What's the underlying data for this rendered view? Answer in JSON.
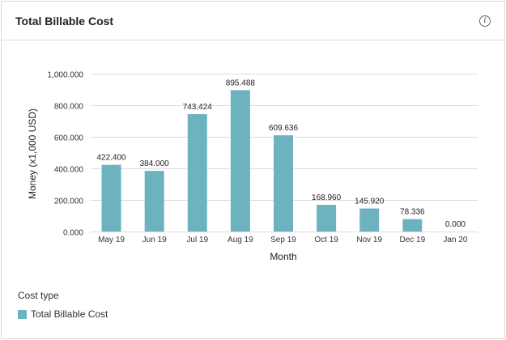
{
  "card": {
    "title": "Total Billable Cost",
    "info_icon": "info-circle-icon"
  },
  "legend": {
    "title": "Cost type",
    "items": [
      {
        "label": "Total Billable Cost",
        "color": "#6db3bf"
      }
    ]
  },
  "chart_data": {
    "type": "bar",
    "title": "Total Billable Cost",
    "xlabel": "Month",
    "ylabel": "Money (x1,000 USD)",
    "categories": [
      "May 19",
      "Jun 19",
      "Jul 19",
      "Aug 19",
      "Sep 19",
      "Oct 19",
      "Nov 19",
      "Dec 19",
      "Jan 20"
    ],
    "series": [
      {
        "name": "Total Billable Cost",
        "color": "#6db3bf",
        "values": [
          422.4,
          384.0,
          743.424,
          895.488,
          609.636,
          168.96,
          145.92,
          78.336,
          0.0
        ],
        "value_labels": [
          "422.400",
          "384.000",
          "743.424",
          "895.488",
          "609.636",
          "168.960",
          "145.920",
          "78.336",
          "0.000"
        ]
      }
    ],
    "ylim": [
      0,
      1000
    ],
    "yticks": [
      0,
      200,
      400,
      600,
      800,
      1000
    ],
    "ytick_labels": [
      "0.000",
      "200.000",
      "400.000",
      "600.000",
      "800.000",
      "1,000.000"
    ],
    "grid": true,
    "legend_position": "bottom-left"
  }
}
